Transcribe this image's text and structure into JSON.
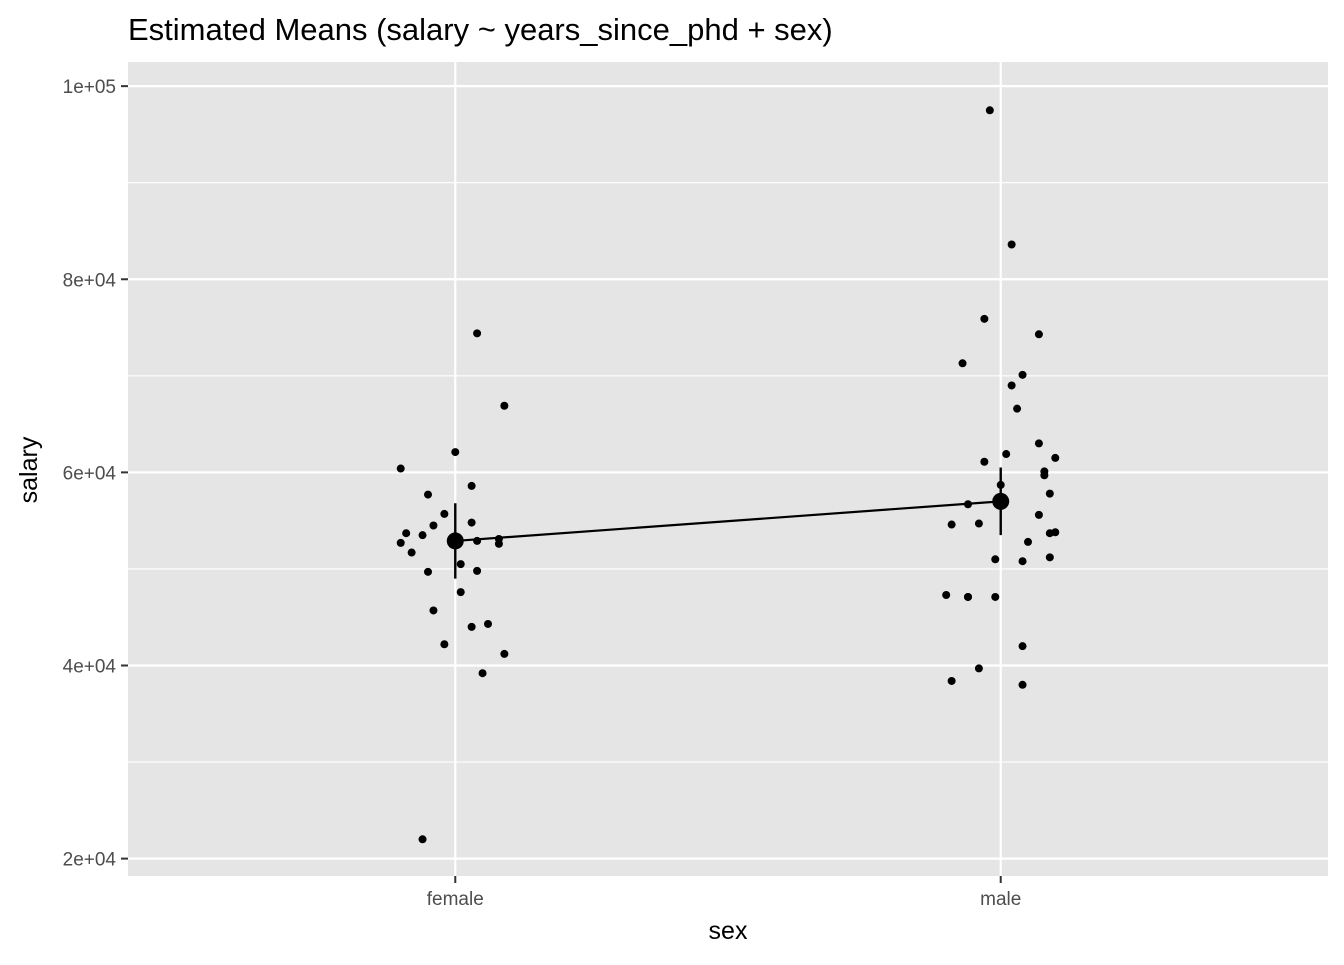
{
  "chart_data": {
    "type": "scatter",
    "title": "Estimated Means (salary ~ years_since_phd + sex)",
    "xlabel": "sex",
    "ylabel": "salary",
    "categories": [
      "female",
      "male"
    ],
    "ylim": [
      18200,
      102500
    ],
    "y_ticks": [
      {
        "value": 20000,
        "label": "2e+04"
      },
      {
        "value": 40000,
        "label": "4e+04"
      },
      {
        "value": 60000,
        "label": "6e+04"
      },
      {
        "value": 80000,
        "label": "8e+04"
      },
      {
        "value": 100000,
        "label": "1e+05"
      }
    ],
    "grid": true,
    "panel_background": "#e5e5e5",
    "grid_color": "#ffffff",
    "point_color": "#000000",
    "estimated_means": [
      {
        "category": "female",
        "mean": 52900,
        "lower": 49000,
        "upper": 56800
      },
      {
        "category": "male",
        "mean": 57000,
        "lower": 53500,
        "upper": 60500
      }
    ],
    "observations": [
      {
        "category": "female",
        "jitter": -0.1,
        "y": 60400
      },
      {
        "category": "female",
        "jitter": -0.09,
        "y": 53700
      },
      {
        "category": "female",
        "jitter": -0.1,
        "y": 52700
      },
      {
        "category": "female",
        "jitter": -0.08,
        "y": 51700
      },
      {
        "category": "female",
        "jitter": -0.06,
        "y": 53500
      },
      {
        "category": "female",
        "jitter": -0.05,
        "y": 57700
      },
      {
        "category": "female",
        "jitter": -0.04,
        "y": 54500
      },
      {
        "category": "female",
        "jitter": -0.02,
        "y": 55700
      },
      {
        "category": "female",
        "jitter": -0.05,
        "y": 49700
      },
      {
        "category": "female",
        "jitter": -0.04,
        "y": 45700
      },
      {
        "category": "female",
        "jitter": -0.02,
        "y": 42200
      },
      {
        "category": "female",
        "jitter": -0.06,
        "y": 22000
      },
      {
        "category": "female",
        "jitter": 0.0,
        "y": 62100
      },
      {
        "category": "female",
        "jitter": 0.01,
        "y": 50500
      },
      {
        "category": "female",
        "jitter": 0.01,
        "y": 47600
      },
      {
        "category": "female",
        "jitter": 0.03,
        "y": 58600
      },
      {
        "category": "female",
        "jitter": 0.03,
        "y": 54800
      },
      {
        "category": "female",
        "jitter": 0.04,
        "y": 52900
      },
      {
        "category": "female",
        "jitter": 0.04,
        "y": 49800
      },
      {
        "category": "female",
        "jitter": 0.03,
        "y": 44000
      },
      {
        "category": "female",
        "jitter": 0.06,
        "y": 44300
      },
      {
        "category": "female",
        "jitter": 0.05,
        "y": 39200
      },
      {
        "category": "female",
        "jitter": 0.04,
        "y": 74400
      },
      {
        "category": "female",
        "jitter": 0.09,
        "y": 66900
      },
      {
        "category": "female",
        "jitter": 0.08,
        "y": 53100
      },
      {
        "category": "female",
        "jitter": 0.08,
        "y": 52600
      },
      {
        "category": "female",
        "jitter": 0.09,
        "y": 41200
      },
      {
        "category": "male",
        "jitter": -0.02,
        "y": 97500
      },
      {
        "category": "male",
        "jitter": 0.02,
        "y": 83600
      },
      {
        "category": "male",
        "jitter": -0.03,
        "y": 75900
      },
      {
        "category": "male",
        "jitter": 0.07,
        "y": 74300
      },
      {
        "category": "male",
        "jitter": -0.07,
        "y": 71300
      },
      {
        "category": "male",
        "jitter": 0.04,
        "y": 70100
      },
      {
        "category": "male",
        "jitter": 0.02,
        "y": 69000
      },
      {
        "category": "male",
        "jitter": 0.03,
        "y": 66600
      },
      {
        "category": "male",
        "jitter": 0.07,
        "y": 63000
      },
      {
        "category": "male",
        "jitter": 0.01,
        "y": 61900
      },
      {
        "category": "male",
        "jitter": -0.03,
        "y": 61100
      },
      {
        "category": "male",
        "jitter": 0.1,
        "y": 61500
      },
      {
        "category": "male",
        "jitter": 0.08,
        "y": 60100
      },
      {
        "category": "male",
        "jitter": 0.08,
        "y": 59700
      },
      {
        "category": "male",
        "jitter": 0.0,
        "y": 58700
      },
      {
        "category": "male",
        "jitter": 0.09,
        "y": 57800
      },
      {
        "category": "male",
        "jitter": -0.06,
        "y": 56700
      },
      {
        "category": "male",
        "jitter": 0.07,
        "y": 55600
      },
      {
        "category": "male",
        "jitter": -0.09,
        "y": 54600
      },
      {
        "category": "male",
        "jitter": -0.04,
        "y": 54700
      },
      {
        "category": "male",
        "jitter": 0.09,
        "y": 53700
      },
      {
        "category": "male",
        "jitter": 0.1,
        "y": 53800
      },
      {
        "category": "male",
        "jitter": 0.05,
        "y": 52800
      },
      {
        "category": "male",
        "jitter": 0.09,
        "y": 51200
      },
      {
        "category": "male",
        "jitter": -0.01,
        "y": 51000
      },
      {
        "category": "male",
        "jitter": 0.04,
        "y": 50800
      },
      {
        "category": "male",
        "jitter": -0.1,
        "y": 47300
      },
      {
        "category": "male",
        "jitter": -0.06,
        "y": 47100
      },
      {
        "category": "male",
        "jitter": -0.06,
        "y": 47100
      },
      {
        "category": "male",
        "jitter": -0.01,
        "y": 47100
      },
      {
        "category": "male",
        "jitter": 0.04,
        "y": 42000
      },
      {
        "category": "male",
        "jitter": -0.04,
        "y": 39700
      },
      {
        "category": "male",
        "jitter": -0.09,
        "y": 38400
      },
      {
        "category": "male",
        "jitter": 0.04,
        "y": 38000
      }
    ]
  }
}
